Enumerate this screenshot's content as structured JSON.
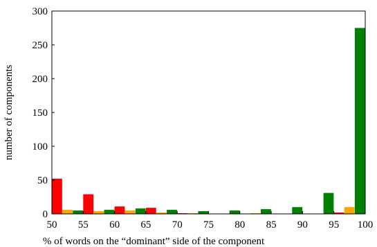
{
  "chart_data": {
    "type": "bar",
    "xlabel": "% of words on the “dominant” side of the component",
    "ylabel": "number of components",
    "xlim": [
      50,
      100
    ],
    "ylim": [
      0,
      300
    ],
    "x_ticks": [
      "50",
      "55",
      "60",
      "65",
      "70",
      "75",
      "80",
      "85",
      "90",
      "95",
      "100"
    ],
    "y_ticks": [
      "0",
      "50",
      "100",
      "150",
      "200",
      "250",
      "300"
    ],
    "bin_starts": [
      50,
      55,
      60,
      65,
      70,
      75,
      80,
      85,
      90,
      95
    ],
    "bin_width": 5,
    "series": [
      {
        "color": "#ff0000",
        "values": [
          52,
          29,
          11,
          9,
          1,
          0,
          0,
          0,
          0,
          2
        ]
      },
      {
        "color": "#ffa500",
        "values": [
          6,
          4,
          5,
          2,
          1,
          0,
          1,
          0,
          0,
          10
        ]
      },
      {
        "color": "#008000",
        "values": [
          5,
          6,
          8,
          6,
          4,
          5,
          7,
          10,
          31,
          275
        ]
      }
    ]
  }
}
